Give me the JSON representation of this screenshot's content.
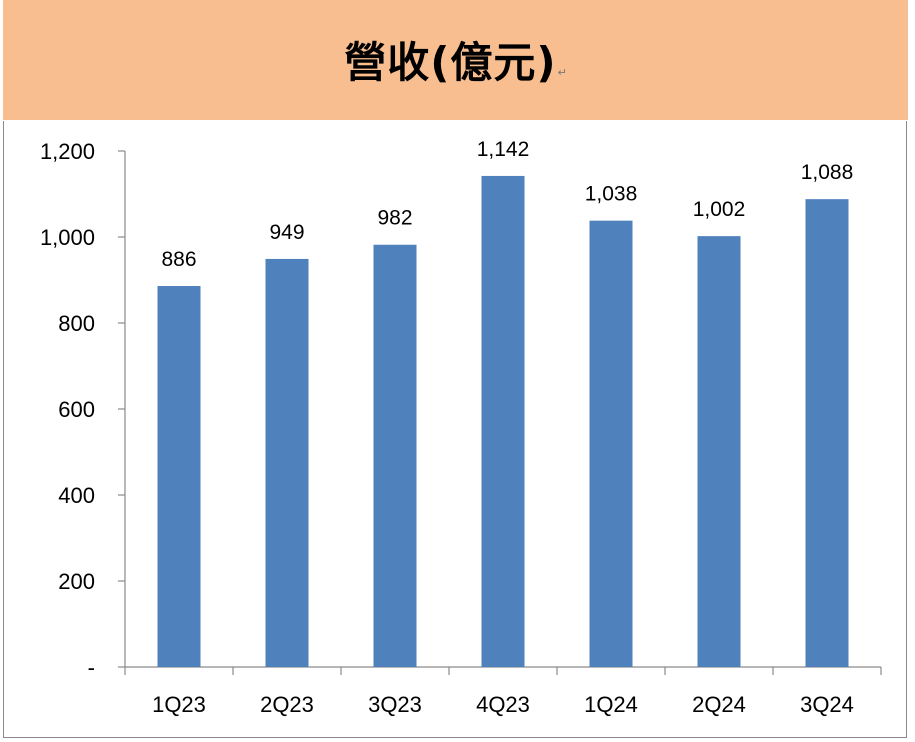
{
  "colors": {
    "header_background": "#f8be90",
    "bar": "#4f81bd",
    "axis": "#8a8a8a"
  },
  "chart_data": {
    "type": "bar",
    "title": "營收(億元)",
    "categories": [
      "1Q23",
      "2Q23",
      "3Q23",
      "4Q23",
      "1Q24",
      "2Q24",
      "3Q24"
    ],
    "values": [
      886,
      949,
      982,
      1142,
      1038,
      1002,
      1088
    ],
    "data_labels": [
      "886",
      "949",
      "982",
      "1,142",
      "1,038",
      "1,002",
      "1,088"
    ],
    "y_ticks": [
      0,
      200,
      400,
      600,
      800,
      1000,
      1200
    ],
    "y_tick_labels": [
      "-",
      "200",
      "400",
      "600",
      "800",
      "1,000",
      "1,200"
    ],
    "ylim": [
      0,
      1200
    ],
    "xlabel": "",
    "ylabel": "",
    "grid": false,
    "legend": "none"
  }
}
